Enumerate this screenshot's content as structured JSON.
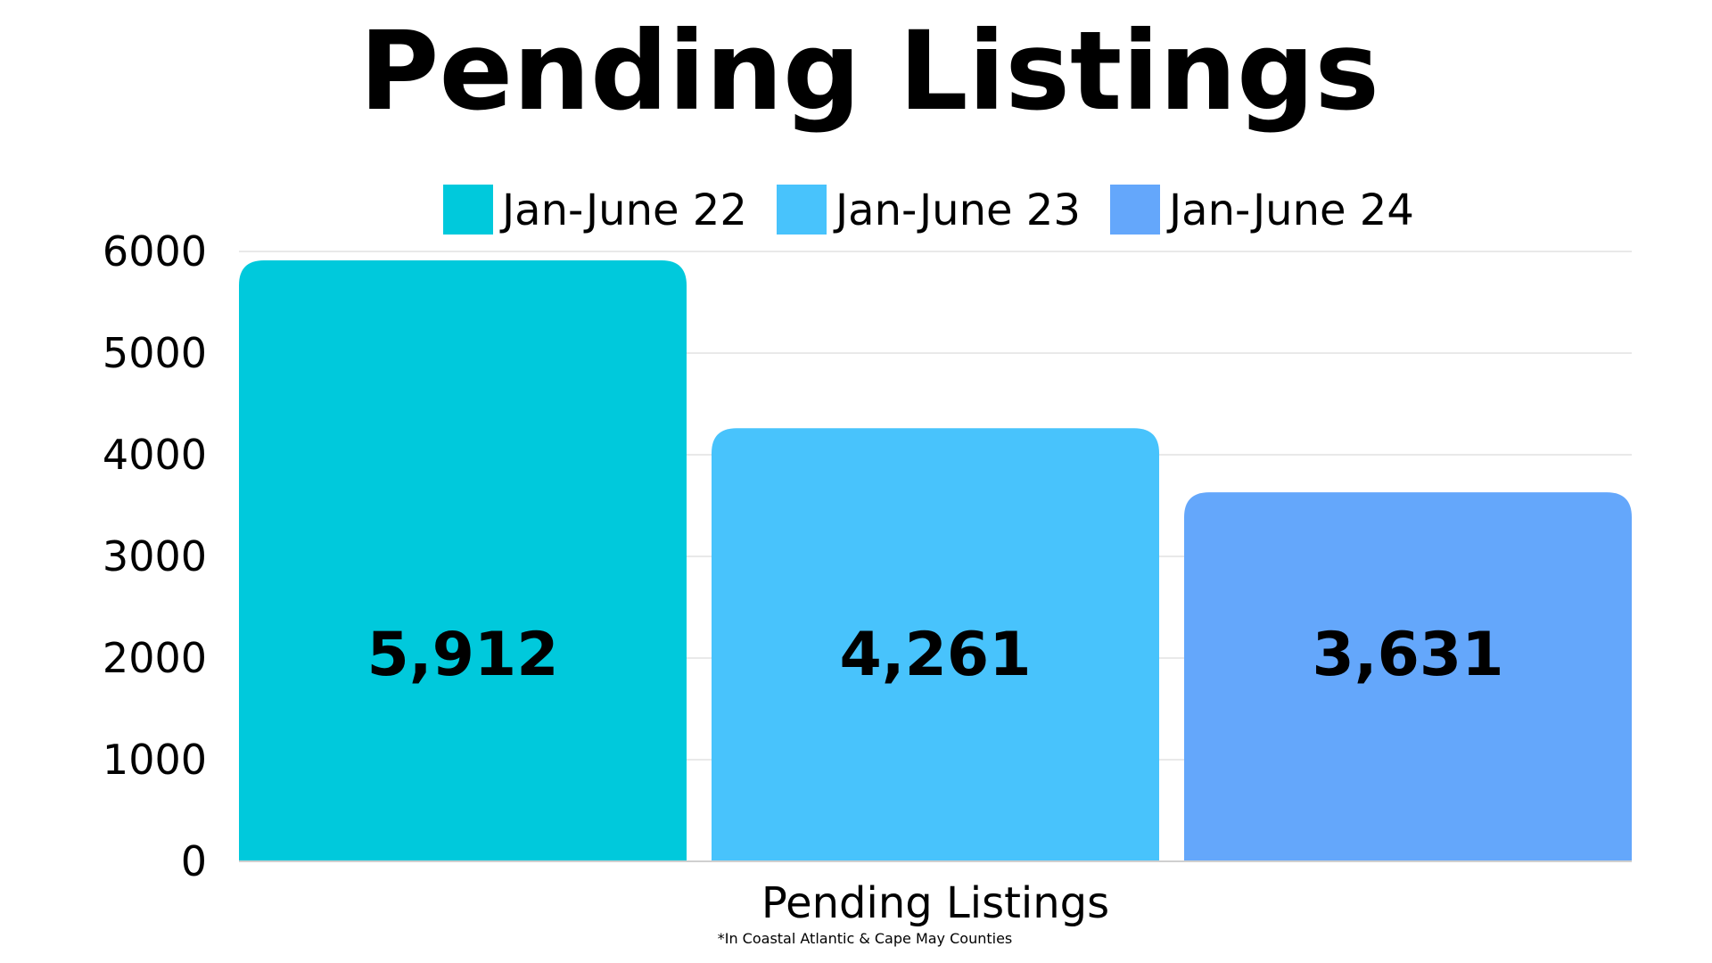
{
  "chart_data": {
    "type": "bar",
    "title": "Pending Listings",
    "categories": [
      "Pending Listings"
    ],
    "xlabel": "Pending Listings",
    "ylabel": "",
    "ylim": [
      0,
      6000
    ],
    "yticks": [
      0,
      1000,
      2000,
      3000,
      4000,
      5000,
      6000
    ],
    "grid": true,
    "legend_position": "top-center",
    "series": [
      {
        "name": "Jan-June 22",
        "values": [
          5912
        ],
        "label": "5,912",
        "color": "#00C9DC"
      },
      {
        "name": "Jan-June 23",
        "values": [
          4261
        ],
        "label": "4,261",
        "color": "#48C3FC"
      },
      {
        "name": "Jan-June 24",
        "values": [
          3631
        ],
        "label": "3,631",
        "color": "#64A7FB"
      }
    ],
    "footnote": "*In Coastal Atlantic & Cape May Counties"
  }
}
